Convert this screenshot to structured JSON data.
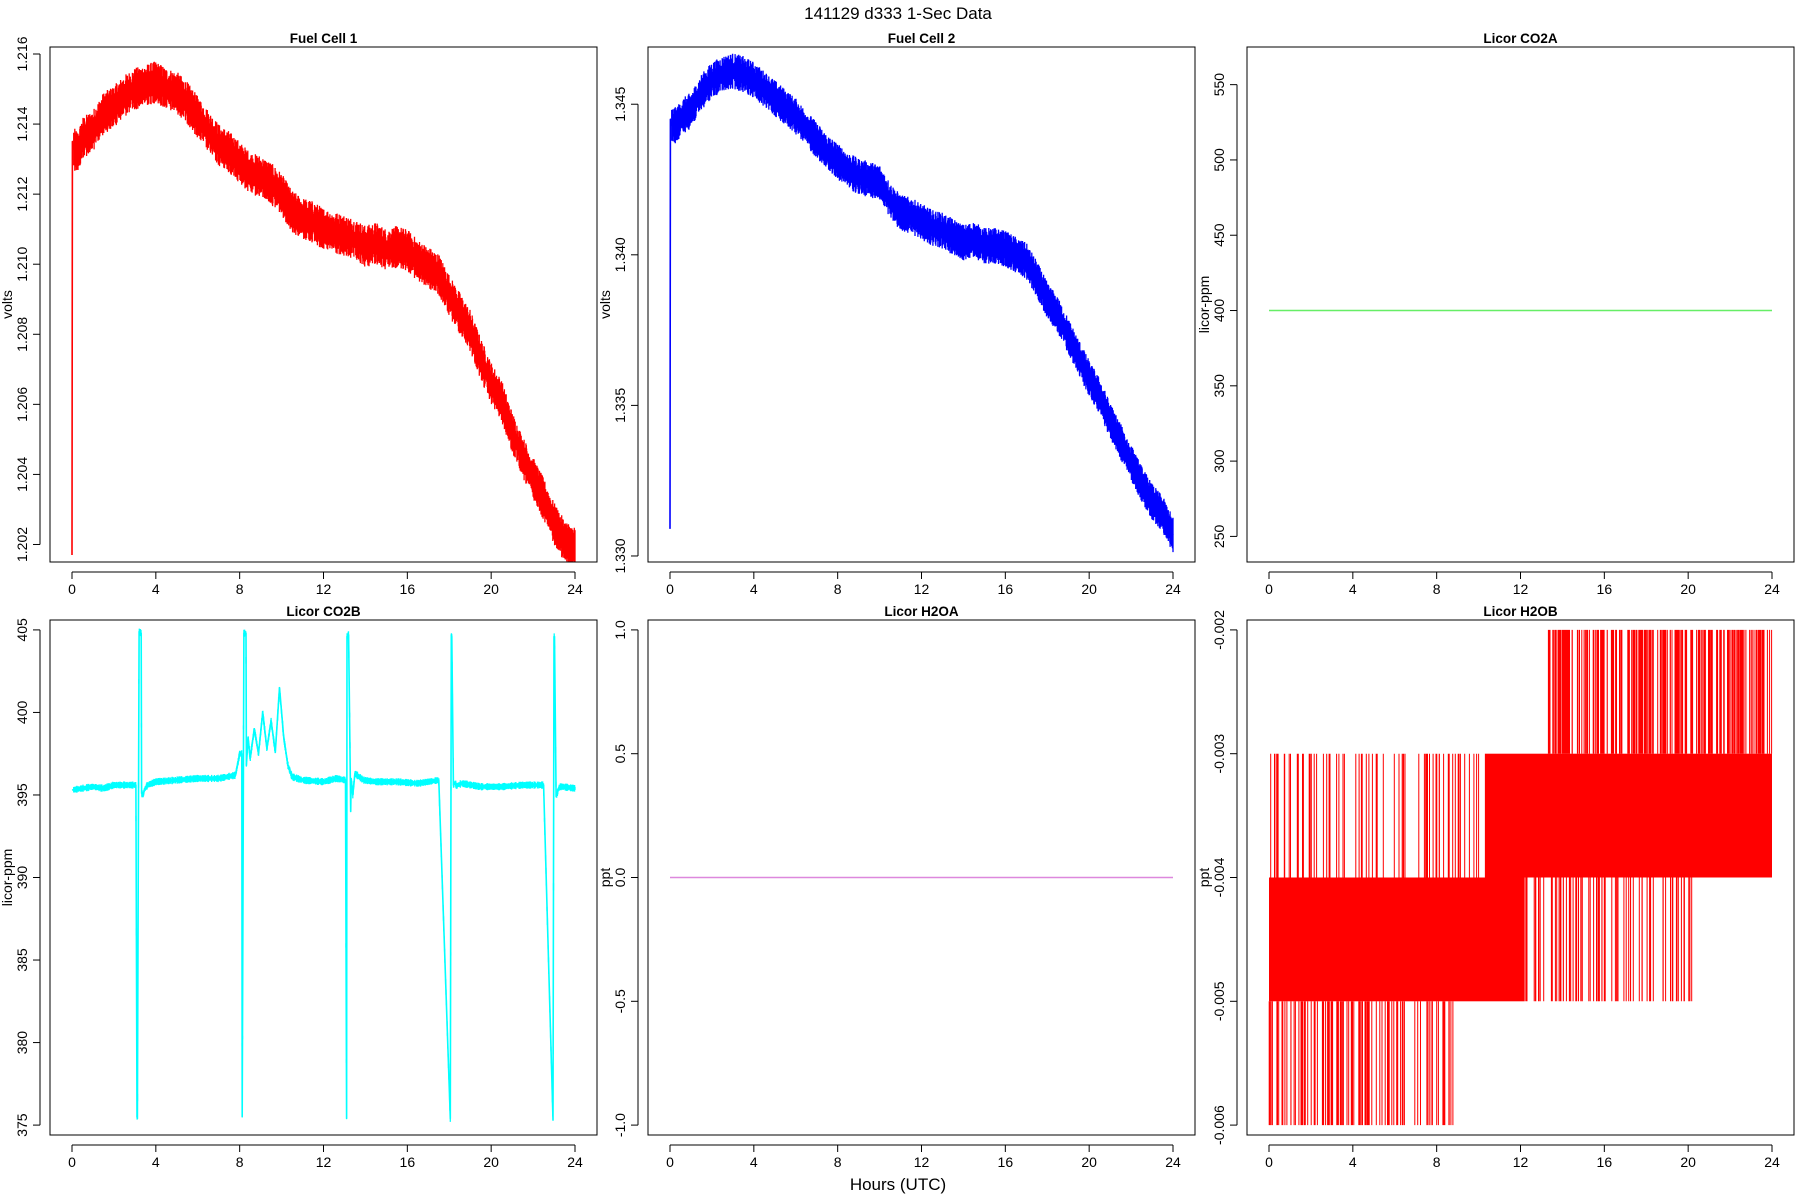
{
  "figure": {
    "suptitle": "141129   d333   1-Sec Data",
    "xlabel": "Hours (UTC)"
  },
  "chart_data": [
    {
      "type": "line",
      "title": "Fuel Cell 1",
      "ylabel": "volts",
      "color": "#ff0000",
      "xlim": [
        0,
        24
      ],
      "ylim": [
        1.2015,
        1.2162
      ],
      "xticks": [
        0,
        4,
        8,
        12,
        16,
        20,
        24
      ],
      "yticks": [
        1.202,
        1.204,
        1.206,
        1.208,
        1.21,
        1.212,
        1.214,
        1.216
      ],
      "ytick_labels": [
        "1.202",
        "1.204",
        "1.206",
        "1.208",
        "1.210",
        "1.212",
        "1.214",
        "1.216"
      ],
      "noise": 0.0004,
      "x": [
        0,
        0.02,
        0.05,
        0.3,
        0.5,
        1,
        1.5,
        2,
        2.5,
        3,
        3.5,
        4,
        4.5,
        5,
        5.5,
        6,
        6.5,
        7,
        7.5,
        8,
        8.5,
        9,
        9.5,
        10,
        10.5,
        11,
        11.5,
        12,
        12.5,
        13,
        13.5,
        14,
        14.5,
        15,
        15.5,
        16,
        16.5,
        17,
        17.5,
        18,
        18.5,
        19,
        19.5,
        20,
        20.5,
        21,
        21.5,
        22,
        22.5,
        23,
        23.5,
        24
      ],
      "y": [
        1.2017,
        1.2135,
        1.2133,
        1.2132,
        1.2136,
        1.2138,
        1.2143,
        1.2145,
        1.2148,
        1.215,
        1.2151,
        1.2152,
        1.215,
        1.2149,
        1.2146,
        1.2142,
        1.2138,
        1.2134,
        1.2132,
        1.2129,
        1.2126,
        1.2125,
        1.2123,
        1.212,
        1.2115,
        1.2113,
        1.2112,
        1.211,
        1.2109,
        1.2108,
        1.2107,
        1.2105,
        1.2106,
        1.2104,
        1.2105,
        1.2104,
        1.2101,
        1.2099,
        1.2097,
        1.2091,
        1.2086,
        1.2081,
        1.2073,
        1.2066,
        1.2061,
        1.2052,
        1.2045,
        1.2039,
        1.2033,
        1.2026,
        1.2021,
        1.2019
      ]
    },
    {
      "type": "line",
      "title": "Fuel Cell 2",
      "ylabel": "volts",
      "color": "#0000ff",
      "xlim": [
        0,
        24
      ],
      "ylim": [
        1.3298,
        1.3469
      ],
      "xticks": [
        0,
        4,
        8,
        12,
        16,
        20,
        24
      ],
      "yticks": [
        1.33,
        1.335,
        1.34,
        1.345
      ],
      "ytick_labels": [
        "1.330",
        "1.335",
        "1.340",
        "1.345"
      ],
      "noise": 0.0004,
      "x": [
        0,
        0.02,
        0.05,
        0.3,
        0.6,
        1,
        1.5,
        2,
        2.5,
        3,
        3.5,
        4,
        4.5,
        5,
        5.5,
        6,
        6.5,
        7,
        7.5,
        8,
        8.5,
        9,
        9.5,
        10,
        10.5,
        11,
        11.5,
        12,
        12.5,
        13,
        13.5,
        14,
        14.5,
        15,
        15.5,
        16,
        16.5,
        17,
        17.5,
        18,
        18.5,
        19,
        19.5,
        20,
        20.5,
        21,
        21.5,
        22,
        22.5,
        23,
        23.5,
        24
      ],
      "y": [
        1.3309,
        1.3445,
        1.3443,
        1.3443,
        1.3446,
        1.3448,
        1.3454,
        1.3458,
        1.346,
        1.3461,
        1.346,
        1.3458,
        1.3455,
        1.3452,
        1.3449,
        1.3446,
        1.3442,
        1.3438,
        1.3434,
        1.3431,
        1.3428,
        1.3426,
        1.3425,
        1.3424,
        1.3418,
        1.3414,
        1.3413,
        1.3411,
        1.3409,
        1.3408,
        1.3406,
        1.3404,
        1.3405,
        1.3403,
        1.3403,
        1.3402,
        1.34,
        1.3398,
        1.3392,
        1.3385,
        1.338,
        1.3373,
        1.3366,
        1.3359,
        1.3353,
        1.3345,
        1.3338,
        1.3331,
        1.3324,
        1.3318,
        1.3314,
        1.3307
      ]
    },
    {
      "type": "line",
      "title": "Licor CO2A",
      "ylabel": "licor-ppm",
      "color": "#66ee66",
      "xlim": [
        0,
        24
      ],
      "ylim": [
        233,
        575
      ],
      "xticks": [
        0,
        4,
        8,
        12,
        16,
        20,
        24
      ],
      "yticks": [
        250,
        300,
        350,
        400,
        450,
        500,
        550
      ],
      "ytick_labels": [
        "250",
        "300",
        "350",
        "400",
        "450",
        "500",
        "550"
      ],
      "noise": 0,
      "x": [
        0,
        24
      ],
      "y": [
        400,
        400
      ]
    },
    {
      "type": "line",
      "title": "Licor CO2B",
      "ylabel": "licor-ppm",
      "color": "#00ffff",
      "xlim": [
        0,
        24
      ],
      "ylim": [
        374.4,
        405.6
      ],
      "xticks": [
        0,
        4,
        8,
        12,
        16,
        20,
        24
      ],
      "yticks": [
        375,
        380,
        385,
        390,
        395,
        400,
        405
      ],
      "ytick_labels": [
        "375",
        "380",
        "385",
        "390",
        "395",
        "400",
        "405"
      ],
      "noise": 0.15,
      "x": [
        0,
        0.5,
        1,
        1.5,
        2,
        2.5,
        3.05,
        3.1,
        3.12,
        3.2,
        3.3,
        3.32,
        3.4,
        3.45,
        3.6,
        4,
        5,
        6,
        7,
        7.8,
        8.0,
        8.1,
        8.12,
        8.2,
        8.3,
        8.32,
        8.4,
        8.5,
        8.7,
        8.9,
        9.1,
        9.3,
        9.5,
        9.7,
        9.9,
        10.1,
        10.3,
        10.5,
        11,
        12,
        12.6,
        13.05,
        13.1,
        13.12,
        13.2,
        13.3,
        13.32,
        13.4,
        13.5,
        13.7,
        13.9,
        14.5,
        15.5,
        16.5,
        17.5,
        18.05,
        18.1,
        18.12,
        18.2,
        18.3,
        18.32,
        18.4,
        18.6,
        19.5,
        20.5,
        21.5,
        22.5,
        22.95,
        23.0,
        23.02,
        23.1,
        23.2,
        23.22,
        23.3,
        23.4,
        24
      ],
      "y": [
        395.3,
        395.4,
        395.5,
        395.4,
        395.6,
        395.6,
        395.6,
        375.5,
        375.4,
        404.9,
        404.8,
        395.1,
        395.0,
        395.3,
        395.6,
        395.8,
        395.9,
        396.0,
        396.0,
        396.2,
        397.5,
        397.5,
        375.5,
        404.8,
        404.8,
        396.8,
        398.5,
        397.2,
        399.0,
        397.5,
        400.0,
        397.8,
        399.5,
        397.6,
        401.5,
        398.5,
        396.8,
        396.1,
        395.9,
        395.8,
        396.0,
        395.9,
        375.4,
        404.6,
        404.7,
        394.0,
        396.0,
        395.0,
        396.3,
        396.1,
        395.9,
        395.8,
        395.8,
        395.7,
        395.9,
        375.4,
        404.7,
        404.6,
        395.6,
        395.8,
        395.5,
        395.6,
        395.7,
        395.5,
        395.5,
        395.6,
        395.6,
        375.3,
        404.6,
        404.6,
        394.9,
        395.3,
        395.4,
        395.5,
        395.5,
        395.4
      ]
    },
    {
      "type": "line",
      "title": "Licor H2OA",
      "ylabel": "ppt",
      "color": "#dd88dd",
      "xlim": [
        0,
        24
      ],
      "ylim": [
        -1.04,
        1.04
      ],
      "xticks": [
        0,
        4,
        8,
        12,
        16,
        20,
        24
      ],
      "yticks": [
        -1.0,
        -0.5,
        0.0,
        0.5,
        1.0
      ],
      "ytick_labels": [
        "-1.0",
        "-0.5",
        "0.0",
        "0.5",
        "1.0"
      ],
      "noise": 0,
      "x": [
        0,
        24
      ],
      "y": [
        0,
        0
      ]
    },
    {
      "type": "line",
      "title": "Licor H2OB",
      "ylabel": "ppt",
      "color": "#ff0000",
      "xlim": [
        0,
        24
      ],
      "ylim": [
        -0.00608,
        -0.00192
      ],
      "xticks": [
        0,
        4,
        8,
        12,
        16,
        20,
        24
      ],
      "yticks": [
        -0.006,
        -0.005,
        -0.004,
        -0.003,
        -0.002
      ],
      "ytick_labels": [
        "-0.006",
        "-0.005",
        "-0.004",
        "-0.003",
        "-0.002"
      ],
      "bands": [
        {
          "x0": 0,
          "x1": 12.2,
          "y0": -0.005,
          "y1": -0.004
        },
        {
          "x0": 10.3,
          "x1": 24,
          "y0": -0.004,
          "y1": -0.003
        }
      ],
      "spike_regions": [
        {
          "x0": 0,
          "x1": 8.8,
          "y0": -0.006,
          "y1": -0.005,
          "n": 110
        },
        {
          "x0": 0.05,
          "x1": 10.5,
          "y0": -0.004,
          "y1": -0.003,
          "n": 70
        },
        {
          "x0": 12.0,
          "x1": 20.3,
          "y0": -0.005,
          "y1": -0.004,
          "n": 80
        },
        {
          "x0": 13.3,
          "x1": 24,
          "y0": -0.003,
          "y1": -0.002,
          "n": 230
        }
      ]
    }
  ]
}
